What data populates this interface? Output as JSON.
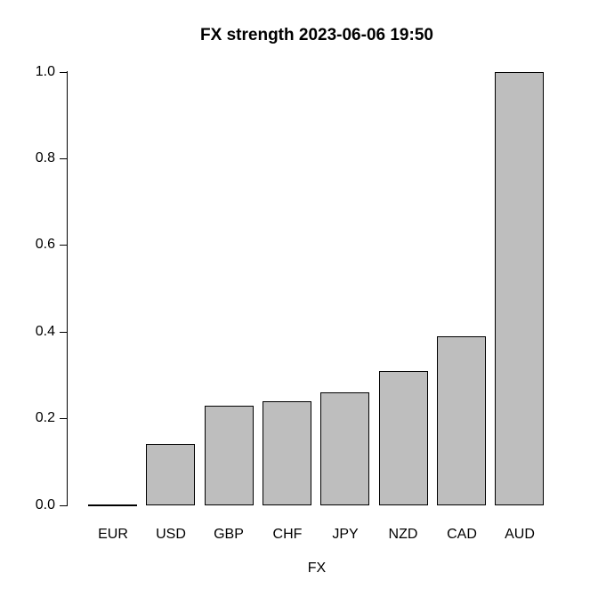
{
  "figure": {
    "background": "#ffffff"
  },
  "chart_data": {
    "type": "bar",
    "title": "FX strength 2023-06-06 19:50",
    "xlabel": "FX",
    "ylabel": "",
    "categories": [
      "EUR",
      "USD",
      "GBP",
      "CHF",
      "JPY",
      "NZD",
      "CAD",
      "AUD"
    ],
    "values": [
      0.0,
      0.14,
      0.23,
      0.24,
      0.26,
      0.31,
      0.39,
      1.0
    ],
    "ylim": [
      0.0,
      1.0
    ],
    "yticks": [
      0.0,
      0.2,
      0.4,
      0.6,
      0.8,
      1.0
    ],
    "ytick_labels": [
      "0.0",
      "0.2",
      "0.4",
      "0.6",
      "0.8",
      "1.0"
    ],
    "grid": false,
    "legend": "none",
    "bar_fill": "#bebebe",
    "bar_border": "#000000",
    "axis_color": "#000000",
    "text_color": "#000000"
  }
}
